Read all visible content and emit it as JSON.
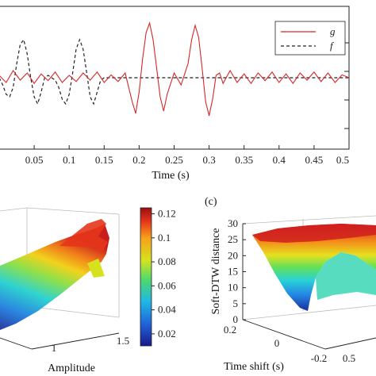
{
  "chart_data": [
    {
      "type": "line",
      "xlabel": "Time (s)",
      "xlim": [
        0,
        0.5
      ],
      "ylim": [
        -1.5,
        1.5
      ],
      "x_ticks": [
        "0.05",
        "0.1",
        "0.15",
        "0.2",
        "0.25",
        "0.3",
        "0.35",
        "0.4",
        "0.45",
        "0.5"
      ],
      "x_tick_values": [
        0.05,
        0.1,
        0.15,
        0.2,
        0.25,
        0.3,
        0.35,
        0.4,
        0.45,
        0.5
      ],
      "legend_position": "top-right",
      "series": [
        {
          "name": "g",
          "color": "#d62728",
          "style": "solid",
          "x": [
            0,
            0.01,
            0.02,
            0.03,
            0.04,
            0.05,
            0.06,
            0.07,
            0.08,
            0.09,
            0.1,
            0.11,
            0.12,
            0.13,
            0.14,
            0.15,
            0.16,
            0.17,
            0.18,
            0.19,
            0.195,
            0.2,
            0.205,
            0.21,
            0.215,
            0.22,
            0.225,
            0.23,
            0.235,
            0.24,
            0.25,
            0.26,
            0.27,
            0.275,
            0.28,
            0.285,
            0.29,
            0.295,
            0.3,
            0.305,
            0.31,
            0.315,
            0.32,
            0.33,
            0.34,
            0.35,
            0.36,
            0.37,
            0.38,
            0.39,
            0.4,
            0.41,
            0.42,
            0.43,
            0.44,
            0.45,
            0.46,
            0.47,
            0.48,
            0.49,
            0.5
          ],
          "y": [
            0.05,
            -0.1,
            0.15,
            -0.05,
            0.1,
            -0.12,
            0.08,
            -0.06,
            0.12,
            -0.1,
            0.05,
            -0.08,
            0.1,
            -0.05,
            0.12,
            -0.1,
            0.06,
            -0.08,
            0.1,
            -0.5,
            -0.75,
            -0.3,
            0.4,
            0.95,
            1.15,
            0.8,
            0.2,
            -0.4,
            -0.7,
            -0.35,
            0.1,
            -0.15,
            0.3,
            0.8,
            1.1,
            0.85,
            0.2,
            -0.5,
            -0.8,
            -0.45,
            0.05,
            0.1,
            -0.12,
            0.15,
            -0.1,
            0.08,
            -0.12,
            0.1,
            -0.06,
            0.12,
            -0.1,
            0.08,
            -0.12,
            0.1,
            -0.05,
            0.12,
            -0.08,
            0.1,
            -0.1,
            0.06,
            0.0
          ]
        },
        {
          "name": "f",
          "color": "#222222",
          "style": "dashed",
          "x": [
            0,
            0.005,
            0.01,
            0.015,
            0.02,
            0.025,
            0.03,
            0.035,
            0.04,
            0.045,
            0.05,
            0.055,
            0.06,
            0.065,
            0.07,
            0.075,
            0.08,
            0.085,
            0.09,
            0.095,
            0.1,
            0.105,
            0.11,
            0.115,
            0.12,
            0.125,
            0.13,
            0.135,
            0.14,
            0.145,
            0.15,
            0.2,
            0.3,
            0.4,
            0.5
          ],
          "y": [
            0,
            -0.15,
            -0.35,
            -0.4,
            -0.2,
            0.3,
            0.7,
            0.8,
            0.5,
            0.0,
            -0.4,
            -0.55,
            -0.3,
            0.0,
            0.05,
            0.0,
            -0.05,
            -0.2,
            -0.45,
            -0.55,
            -0.35,
            0.1,
            0.6,
            0.8,
            0.6,
            0.1,
            -0.4,
            -0.55,
            -0.3,
            -0.05,
            0,
            0,
            0,
            0,
            0
          ]
        }
      ]
    },
    {
      "type": "surface",
      "xlabel": "Amplitude",
      "x_ticks": [
        "1",
        "1.5"
      ],
      "colorbar_ticks": [
        "0.12",
        "0.1",
        "0.08",
        "0.06",
        "0.04",
        "0.02"
      ],
      "colorbar_values": [
        0.12,
        0.1,
        0.08,
        0.06,
        0.04,
        0.02
      ],
      "colorbar_range": [
        0.01,
        0.125
      ],
      "colormap": "jet"
    },
    {
      "type": "surface",
      "panel_label": "(c)",
      "zlabel": "Soft-DTW distance",
      "xlabel": "Time shift (s)",
      "z_ticks": [
        "30",
        "25",
        "20",
        "15",
        "10",
        "5",
        "0"
      ],
      "z_tick_values": [
        30,
        25,
        20,
        15,
        10,
        5,
        0
      ],
      "x_ticks": [
        "0.2",
        "0",
        "-0.2"
      ],
      "y_ticks": [
        "0.5"
      ],
      "colormap": "jet"
    }
  ]
}
